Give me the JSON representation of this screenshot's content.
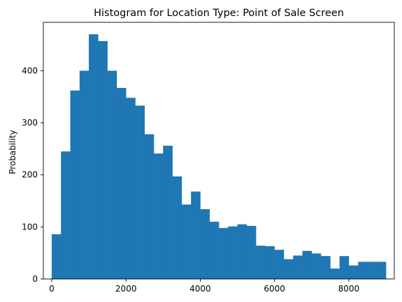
{
  "chart_data": {
    "type": "bar",
    "title": "Histogram for Location Type: Point of Sale Screen",
    "xlabel": "",
    "ylabel": "Probability",
    "xlim": [
      -225,
      9225
    ],
    "ylim": [
      0,
      493
    ],
    "xticks": [
      0,
      2000,
      4000,
      6000,
      8000
    ],
    "yticks": [
      0,
      100,
      200,
      300,
      400
    ],
    "bar_color": "#1f77b4",
    "bin_edges": [
      0,
      250,
      500,
      750,
      1000,
      1250,
      1500,
      1750,
      2000,
      2250,
      2500,
      2750,
      3000,
      3250,
      3500,
      3750,
      4000,
      4250,
      4500,
      4750,
      5000,
      5250,
      5500,
      5750,
      6000,
      6250,
      6500,
      6750,
      7000,
      7250,
      7500,
      7750,
      8000,
      8250,
      8500,
      8750,
      9000
    ],
    "values": [
      86,
      245,
      362,
      400,
      470,
      457,
      400,
      367,
      348,
      333,
      278,
      241,
      256,
      197,
      143,
      168,
      134,
      110,
      98,
      101,
      105,
      102,
      64,
      63,
      56,
      38,
      45,
      54,
      49,
      44,
      20,
      44,
      26,
      33,
      33,
      33
    ]
  }
}
